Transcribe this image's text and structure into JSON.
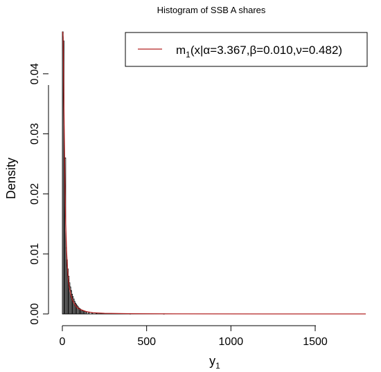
{
  "chart_data": {
    "type": "bar",
    "title": "Histogram of SSB A shares",
    "xlabel": "y",
    "xlabel_sub": "1",
    "ylabel": "Density",
    "xlim": [
      0,
      1800
    ],
    "ylim": [
      0,
      0.047
    ],
    "x_ticks": [
      0,
      500,
      1000,
      1500
    ],
    "y_ticks": [
      0.0,
      0.01,
      0.02,
      0.03,
      0.04
    ],
    "y_tick_labels": [
      "0.00",
      "0.01",
      "0.02",
      "0.03",
      "0.04"
    ],
    "bin_width": 5,
    "bins": [
      {
        "x0": 0,
        "density": 0.047
      },
      {
        "x0": 5,
        "density": 0.0455
      },
      {
        "x0": 10,
        "density": 0.026
      },
      {
        "x0": 15,
        "density": 0.026
      },
      {
        "x0": 20,
        "density": 0.011
      },
      {
        "x0": 25,
        "density": 0.009
      },
      {
        "x0": 30,
        "density": 0.0075
      },
      {
        "x0": 35,
        "density": 0.0063
      },
      {
        "x0": 40,
        "density": 0.0052
      },
      {
        "x0": 45,
        "density": 0.0045
      },
      {
        "x0": 50,
        "density": 0.0039
      },
      {
        "x0": 55,
        "density": 0.0033
      },
      {
        "x0": 60,
        "density": 0.0029
      },
      {
        "x0": 65,
        "density": 0.0025
      },
      {
        "x0": 70,
        "density": 0.0021
      },
      {
        "x0": 75,
        "density": 0.0018
      },
      {
        "x0": 80,
        "density": 0.0016
      },
      {
        "x0": 85,
        "density": 0.0014
      },
      {
        "x0": 90,
        "density": 0.0012
      },
      {
        "x0": 95,
        "density": 0.001
      },
      {
        "x0": 100,
        "density": 0.0009
      },
      {
        "x0": 105,
        "density": 0.0008
      },
      {
        "x0": 110,
        "density": 0.0007
      },
      {
        "x0": 115,
        "density": 0.0006
      },
      {
        "x0": 120,
        "density": 0.0005
      },
      {
        "x0": 130,
        "density": 0.0004
      },
      {
        "x0": 140,
        "density": 0.0003
      },
      {
        "x0": 155,
        "density": 0.0002
      },
      {
        "x0": 175,
        "density": 0.00015
      },
      {
        "x0": 200,
        "density": 0.0001
      },
      {
        "x0": 240,
        "density": 7e-05
      },
      {
        "x0": 300,
        "density": 4e-05
      },
      {
        "x0": 400,
        "density": 2e-05
      },
      {
        "x0": 600,
        "density": 1e-05
      }
    ],
    "fitted_curve": {
      "name": "m1(x|α=3.367,β=0.010,ν=0.482)",
      "color": "#b22222",
      "points": [
        [
          2,
          0.049
        ],
        [
          5,
          0.046
        ],
        [
          8,
          0.038
        ],
        [
          12,
          0.029
        ],
        [
          16,
          0.021
        ],
        [
          20,
          0.015
        ],
        [
          25,
          0.0105
        ],
        [
          30,
          0.0078
        ],
        [
          35,
          0.006
        ],
        [
          40,
          0.0047
        ],
        [
          50,
          0.0032
        ],
        [
          60,
          0.0023
        ],
        [
          75,
          0.0015
        ],
        [
          90,
          0.001
        ],
        [
          110,
          0.0007
        ],
        [
          140,
          0.0004
        ],
        [
          180,
          0.0002
        ],
        [
          250,
          0.0001
        ],
        [
          400,
          4e-05
        ],
        [
          700,
          1e-05
        ],
        [
          1200,
          0.0
        ],
        [
          1800,
          0.0
        ]
      ]
    },
    "legend": {
      "position": "top-right",
      "prefix": "m",
      "sub": "1",
      "suffix": "(x|α=3.367,β=0.010,ν=0.482)"
    }
  }
}
